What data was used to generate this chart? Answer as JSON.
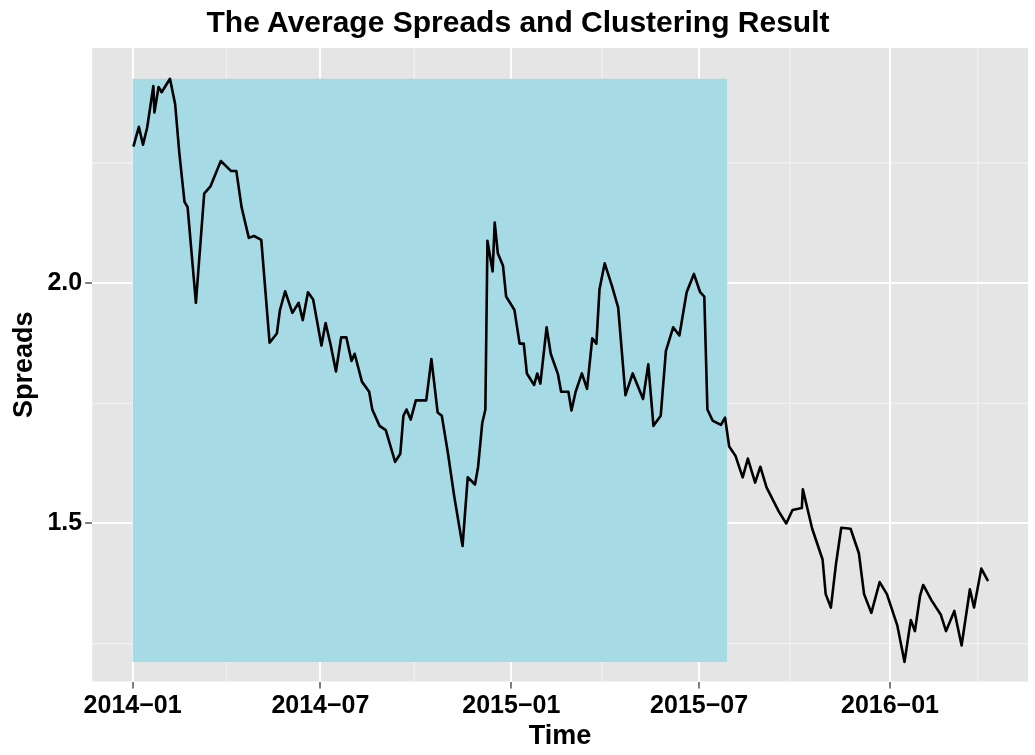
{
  "chart_data": {
    "type": "line",
    "title": "The Average Spreads and Clustering Result",
    "xlabel": "Time",
    "ylabel": "Spreads",
    "xlim": [
      "2013-11-23",
      "2016-05-13"
    ],
    "xticks": [
      {
        "value": "2014-01",
        "label": "2014−01"
      },
      {
        "value": "2014-07",
        "label": "2014−07"
      },
      {
        "value": "2015-01",
        "label": "2015−01"
      },
      {
        "value": "2015-07",
        "label": "2015−07"
      },
      {
        "value": "2016-01",
        "label": "2016−01"
      }
    ],
    "ylim": [
      1.171,
      2.489
    ],
    "yticks": [
      {
        "value": 1.5,
        "label": "1.5"
      },
      {
        "value": 2,
        "label": "2.0"
      }
    ],
    "grid": true,
    "legend": false,
    "marker": "none",
    "line_style": "solid",
    "bands": [
      {
        "axis": "x",
        "from": "2014-01-01",
        "to": "2015-07-28",
        "color": "#a6dae5"
      }
    ],
    "series": [
      {
        "color": "#000000",
        "x": [
          "2014-01-02",
          "2014-01-07",
          "2014-01-11",
          "2014-01-15",
          "2014-01-21",
          "2014-01-22",
          "2014-01-26",
          "2014-01-29",
          "2014-02-06",
          "2014-02-11",
          "2014-02-15",
          "2014-02-20",
          "2014-02-23",
          "2014-03-03",
          "2014-03-11",
          "2014-03-17",
          "2014-03-21",
          "2014-03-27",
          "2014-04-06",
          "2014-04-11",
          "2014-04-16",
          "2014-04-23",
          "2014-04-28",
          "2014-05-05",
          "2014-05-13",
          "2014-05-20",
          "2014-05-23",
          "2014-05-28",
          "2014-06-04",
          "2014-06-10",
          "2014-06-14",
          "2014-06-19",
          "2014-06-24",
          "2014-07-02",
          "2014-07-06",
          "2014-07-11",
          "2014-07-16",
          "2014-07-21",
          "2014-07-26",
          "2014-07-31",
          "2014-08-03",
          "2014-08-10",
          "2014-08-17",
          "2014-08-20",
          "2014-08-27",
          "2014-09-02",
          "2014-09-11",
          "2014-09-16",
          "2014-09-19",
          "2014-09-22",
          "2014-09-26",
          "2014-10-01",
          "2014-10-11",
          "2014-10-16",
          "2014-10-22",
          "2014-10-26",
          "2014-11-01",
          "2014-11-07",
          "2014-11-15",
          "2014-11-20",
          "2014-11-27",
          "2014-11-30",
          "2014-12-04",
          "2014-12-07",
          "2014-12-09",
          "2014-12-14",
          "2014-12-16",
          "2014-12-19",
          "2014-12-24",
          "2014-12-27",
          "2015-01-04",
          "2015-01-09",
          "2015-01-13",
          "2015-01-16",
          "2015-01-23",
          "2015-01-26",
          "2015-01-29",
          "2015-02-04",
          "2015-02-08",
          "2015-02-15",
          "2015-02-18",
          "2015-02-25",
          "2015-02-28",
          "2015-03-04",
          "2015-03-10",
          "2015-03-15",
          "2015-03-20",
          "2015-03-24",
          "2015-03-27",
          "2015-04-01",
          "2015-04-08",
          "2015-04-14",
          "2015-04-21",
          "2015-04-28",
          "2015-05-08",
          "2015-05-13",
          "2015-05-18",
          "2015-05-25",
          "2015-05-30",
          "2015-06-06",
          "2015-06-12",
          "2015-06-19",
          "2015-06-26",
          "2015-07-02",
          "2015-07-06",
          "2015-07-09",
          "2015-07-14",
          "2015-07-22",
          "2015-07-26",
          "2015-07-30",
          "2015-08-05",
          "2015-08-12",
          "2015-08-17",
          "2015-08-24",
          "2015-08-29",
          "2015-09-04",
          "2015-09-16",
          "2015-09-23",
          "2015-09-29",
          "2015-10-08",
          "2015-10-09",
          "2015-10-18",
          "2015-10-28",
          "2015-10-31",
          "2015-11-05",
          "2015-11-10",
          "2015-11-15",
          "2015-11-24",
          "2015-12-02",
          "2015-12-07",
          "2015-12-14",
          "2015-12-22",
          "2015-12-29",
          "2016-01-08",
          "2016-01-15",
          "2016-01-21",
          "2016-01-25",
          "2016-01-30",
          "2016-02-02",
          "2016-02-10",
          "2016-02-19",
          "2016-02-24",
          "2016-03-03",
          "2016-03-10",
          "2016-03-18",
          "2016-03-22",
          "2016-03-29",
          "2016-04-04"
        ],
        "values": [
          2.286,
          2.325,
          2.288,
          2.323,
          2.41,
          2.355,
          2.408,
          2.397,
          2.425,
          2.372,
          2.271,
          2.169,
          2.158,
          1.959,
          2.186,
          2.201,
          2.222,
          2.254,
          2.233,
          2.233,
          2.158,
          2.094,
          2.098,
          2.09,
          1.876,
          1.895,
          1.944,
          1.983,
          1.938,
          1.959,
          1.923,
          1.981,
          1.966,
          1.87,
          1.917,
          1.87,
          1.816,
          1.887,
          1.887,
          1.838,
          1.853,
          1.795,
          1.774,
          1.737,
          1.703,
          1.694,
          1.628,
          1.645,
          1.724,
          1.737,
          1.716,
          1.756,
          1.756,
          1.842,
          1.731,
          1.724,
          1.645,
          1.556,
          1.453,
          1.596,
          1.581,
          1.618,
          1.709,
          1.737,
          2.088,
          2.024,
          2.126,
          2.062,
          2.036,
          1.972,
          1.944,
          1.874,
          1.874,
          1.812,
          1.788,
          1.812,
          1.791,
          1.908,
          1.853,
          1.81,
          1.774,
          1.774,
          1.735,
          1.774,
          1.812,
          1.78,
          1.885,
          1.874,
          1.987,
          2.041,
          1.994,
          1.949,
          1.767,
          1.812,
          1.759,
          1.831,
          1.703,
          1.724,
          1.859,
          1.908,
          1.891,
          1.981,
          2.019,
          1.981,
          1.972,
          1.737,
          1.714,
          1.705,
          1.72,
          1.66,
          1.641,
          1.596,
          1.635,
          1.585,
          1.618,
          1.575,
          1.524,
          1.5,
          1.528,
          1.532,
          1.571,
          1.489,
          1.425,
          1.353,
          1.325,
          1.417,
          1.491,
          1.489,
          1.438,
          1.353,
          1.314,
          1.378,
          1.353,
          1.288,
          1.212,
          1.299,
          1.276,
          1.35,
          1.372,
          1.34,
          1.31,
          1.276,
          1.318,
          1.246,
          1.363,
          1.325,
          1.406,
          1.382
        ]
      }
    ]
  }
}
